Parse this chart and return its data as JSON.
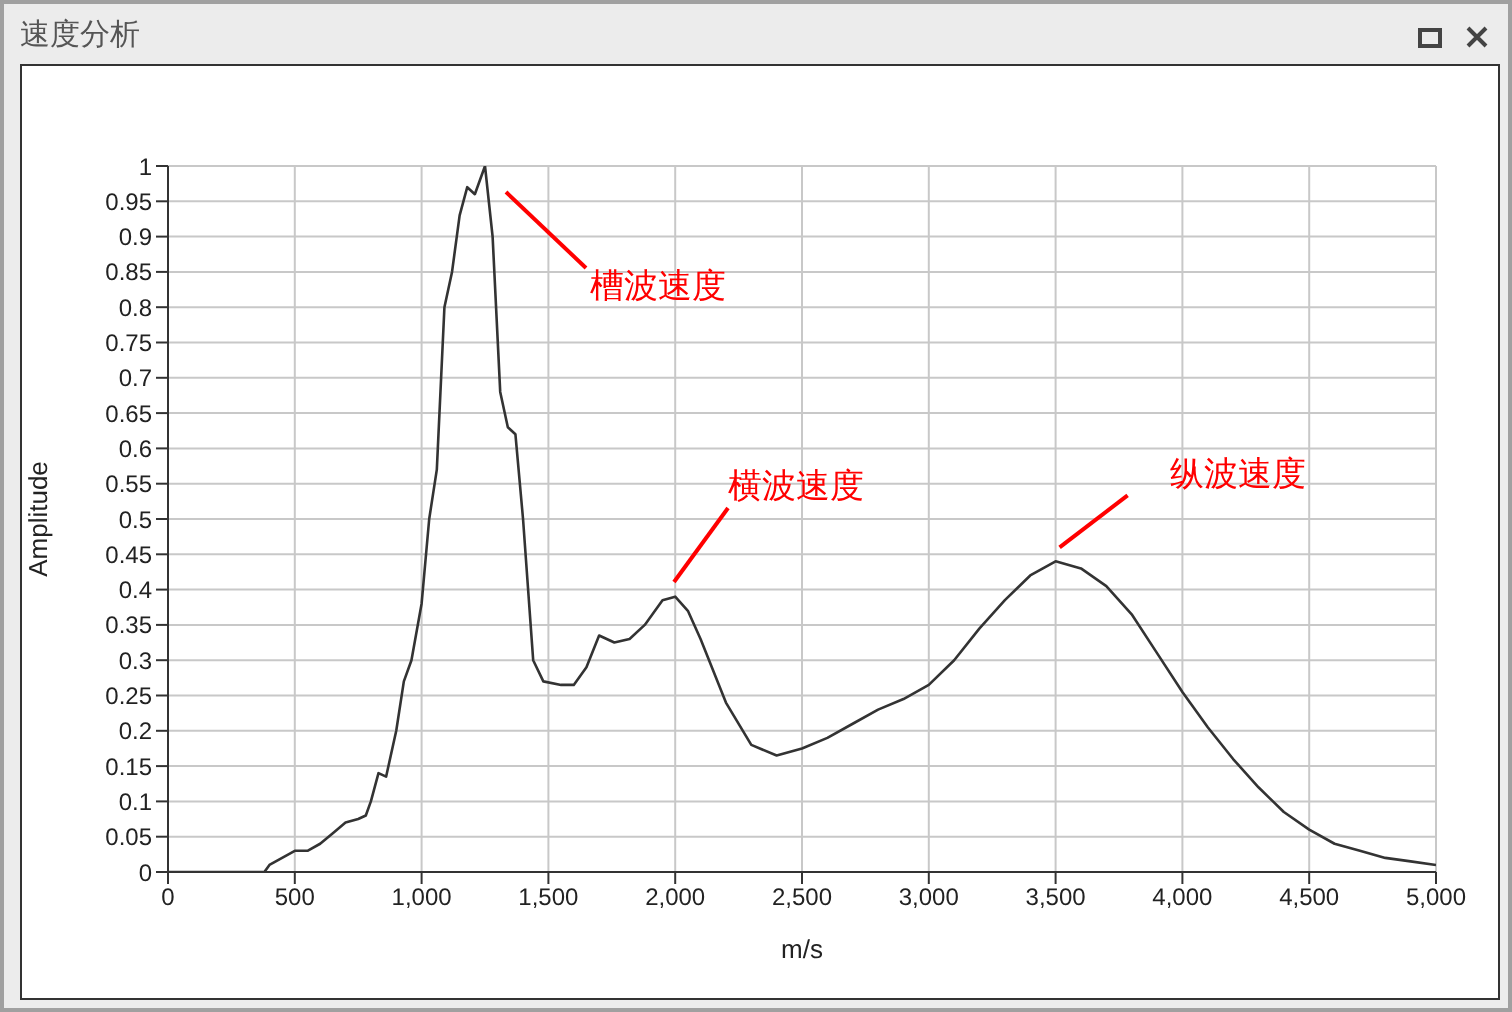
{
  "chart_data": {
    "type": "line",
    "title": "速度分析",
    "xlabel": "m/s",
    "ylabel": "Amplitude",
    "grid": true,
    "marker": "none",
    "line_style": "solid",
    "x": [
      0,
      100,
      200,
      300,
      380,
      400,
      450,
      500,
      550,
      600,
      650,
      700,
      750,
      780,
      800,
      830,
      860,
      900,
      930,
      960,
      1000,
      1030,
      1060,
      1090,
      1120,
      1150,
      1180,
      1210,
      1250,
      1280,
      1310,
      1340,
      1370,
      1400,
      1440,
      1480,
      1550,
      1600,
      1650,
      1700,
      1760,
      1820,
      1880,
      1950,
      2000,
      2050,
      2100,
      2200,
      2300,
      2400,
      2500,
      2600,
      2700,
      2800,
      2900,
      3000,
      3100,
      3200,
      3300,
      3400,
      3500,
      3600,
      3700,
      3800,
      3900,
      4000,
      4100,
      4200,
      4300,
      4400,
      4500,
      4600,
      4700,
      4800,
      4900,
      5000
    ],
    "series": [
      {
        "color": "#333333",
        "values": [
          0,
          0,
          0,
          0,
          0,
          0.01,
          0.02,
          0.03,
          0.03,
          0.04,
          0.055,
          0.07,
          0.075,
          0.08,
          0.1,
          0.14,
          0.135,
          0.2,
          0.27,
          0.3,
          0.38,
          0.5,
          0.57,
          0.8,
          0.85,
          0.93,
          0.97,
          0.96,
          1,
          0.9,
          0.68,
          0.63,
          0.62,
          0.5,
          0.3,
          0.27,
          0.265,
          0.265,
          0.29,
          0.335,
          0.325,
          0.33,
          0.35,
          0.385,
          0.39,
          0.37,
          0.33,
          0.24,
          0.18,
          0.165,
          0.175,
          0.19,
          0.21,
          0.23,
          0.245,
          0.265,
          0.3,
          0.345,
          0.385,
          0.42,
          0.44,
          0.43,
          0.405,
          0.365,
          0.31,
          0.255,
          0.205,
          0.16,
          0.12,
          0.085,
          0.06,
          0.04,
          0.03,
          0.02,
          0.015,
          0.01
        ]
      }
    ],
    "xlim": [
      0,
      5000
    ],
    "xticks": [
      0,
      500,
      {
        "value": 1000,
        "label": "1,000"
      },
      {
        "value": 1500,
        "label": "1,500"
      },
      {
        "value": 2000,
        "label": "2,000"
      },
      {
        "value": 2500,
        "label": "2,500"
      },
      {
        "value": 3000,
        "label": "3,000"
      },
      {
        "value": 3500,
        "label": "3,500"
      },
      {
        "value": 4000,
        "label": "4,000"
      },
      {
        "value": 4500,
        "label": "4,500"
      },
      {
        "value": 5000,
        "label": "5,000"
      }
    ],
    "ylim": [
      0,
      1
    ],
    "yticks": [
      0,
      0.05,
      0.1,
      0.15,
      0.2,
      0.25,
      0.3,
      0.35,
      0.4,
      0.45,
      0.5,
      0.55,
      0.6,
      0.65,
      0.7,
      0.75,
      0.8,
      0.85,
      0.9,
      0.95,
      1
    ],
    "annotations": [
      "槽波速度",
      "横波速度",
      {
        "text": "纵波速度",
        "x": 3500,
        "y": 0.44
      }
    ]
  }
}
